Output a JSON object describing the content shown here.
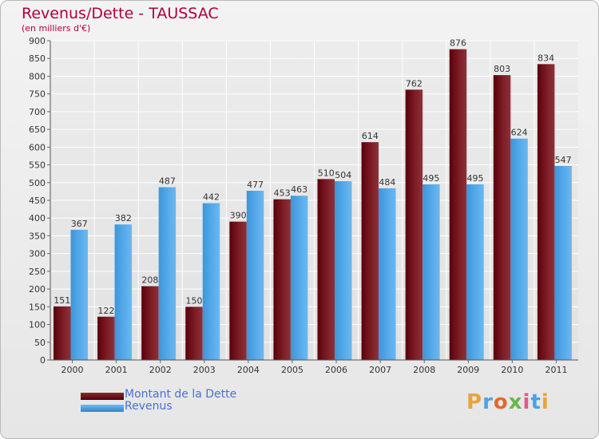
{
  "chart": {
    "title": "Revenus/Dette - TAUSSAC",
    "subtitle": "(en milliers d'€)"
  },
  "legend": {
    "debt_label": "Montant de la Dette",
    "revenue_label": "Revenus"
  },
  "logo": {
    "text": "Proxiti"
  },
  "colors": {
    "debt": "#6b0f18",
    "revenue": "#4aa3e6",
    "title": "#b0003a",
    "legend_text": "#4a6fd8"
  },
  "chart_data": {
    "type": "bar",
    "title": "Revenus/Dette - TAUSSAC",
    "subtitle": "(en milliers d'€)",
    "xlabel": "",
    "ylabel": "",
    "ylim": [
      0,
      900
    ],
    "yticks": [
      0,
      50,
      100,
      150,
      200,
      250,
      300,
      350,
      400,
      450,
      500,
      550,
      600,
      650,
      700,
      750,
      800,
      850,
      900
    ],
    "grid": true,
    "legend_position": "bottom-left",
    "categories": [
      "2000",
      "2001",
      "2002",
      "2003",
      "2004",
      "2005",
      "2006",
      "2007",
      "2008",
      "2009",
      "2010",
      "2011"
    ],
    "series": [
      {
        "name": "Montant de la Dette",
        "values": [
          151,
          122,
          208,
          150,
          390,
          453,
          510,
          614,
          762,
          876,
          803,
          834
        ]
      },
      {
        "name": "Revenus",
        "values": [
          367,
          382,
          487,
          442,
          477,
          463,
          504,
          484,
          495,
          495,
          624,
          547
        ]
      }
    ]
  }
}
